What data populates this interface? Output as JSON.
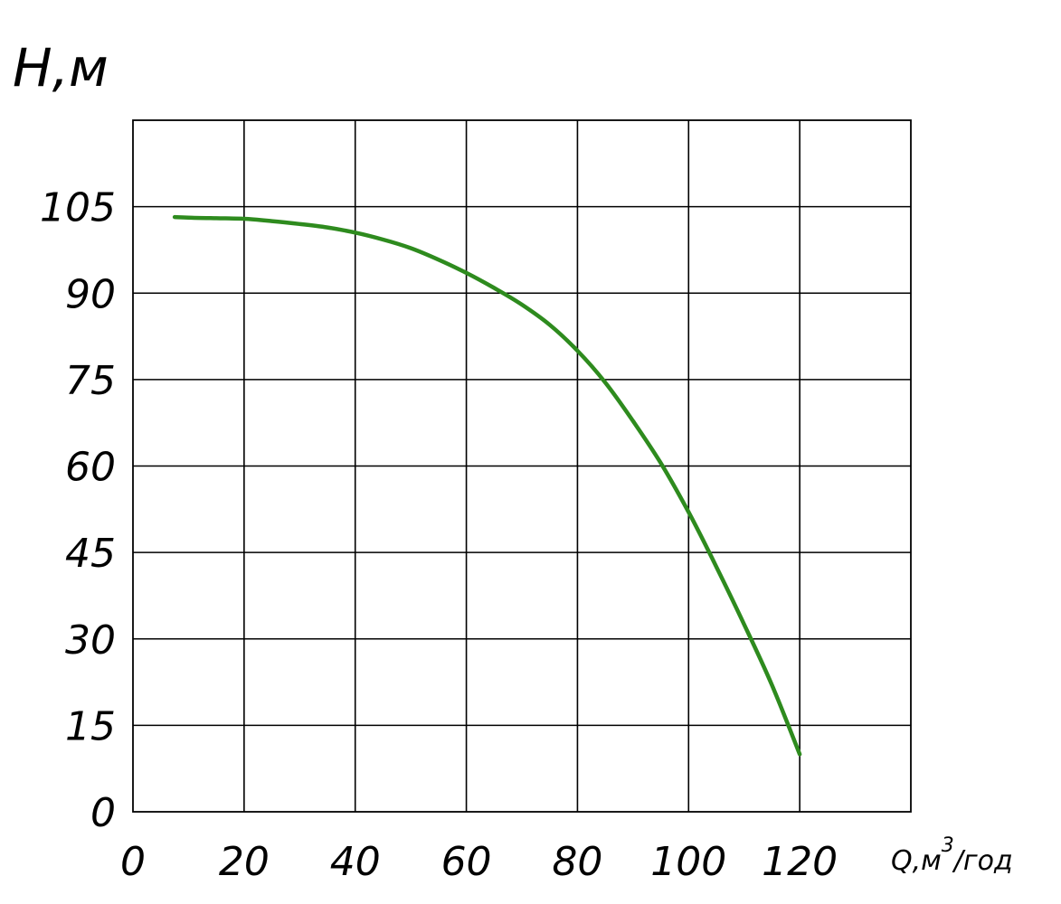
{
  "chart_data": {
    "type": "line",
    "title": "",
    "ylabel": "H,м",
    "xlabel": {
      "prefix": "Q,м",
      "sup": "3",
      "suffix": "/год"
    },
    "xlim": [
      0,
      140
    ],
    "ylim": [
      0,
      120
    ],
    "x_ticks": [
      0,
      20,
      40,
      60,
      80,
      100,
      120
    ],
    "y_ticks": [
      0,
      15,
      30,
      45,
      60,
      75,
      90,
      105
    ],
    "grid": true,
    "legend": "none",
    "series": [
      {
        "color": "#2e8b1e",
        "x": [
          7.5,
          10,
          15,
          20,
          25,
          30,
          35,
          40,
          45,
          50,
          55,
          60,
          65,
          70,
          75,
          80,
          85,
          90,
          95,
          100,
          105,
          110,
          115,
          120
        ],
        "y": [
          103.2,
          103.1,
          103,
          102.9,
          102.5,
          102,
          101.4,
          100.5,
          99.3,
          97.8,
          95.8,
          93.5,
          90.9,
          88,
          84.5,
          80,
          74.5,
          67.8,
          60.5,
          52,
          42.5,
          32.5,
          22,
          10
        ]
      }
    ]
  }
}
